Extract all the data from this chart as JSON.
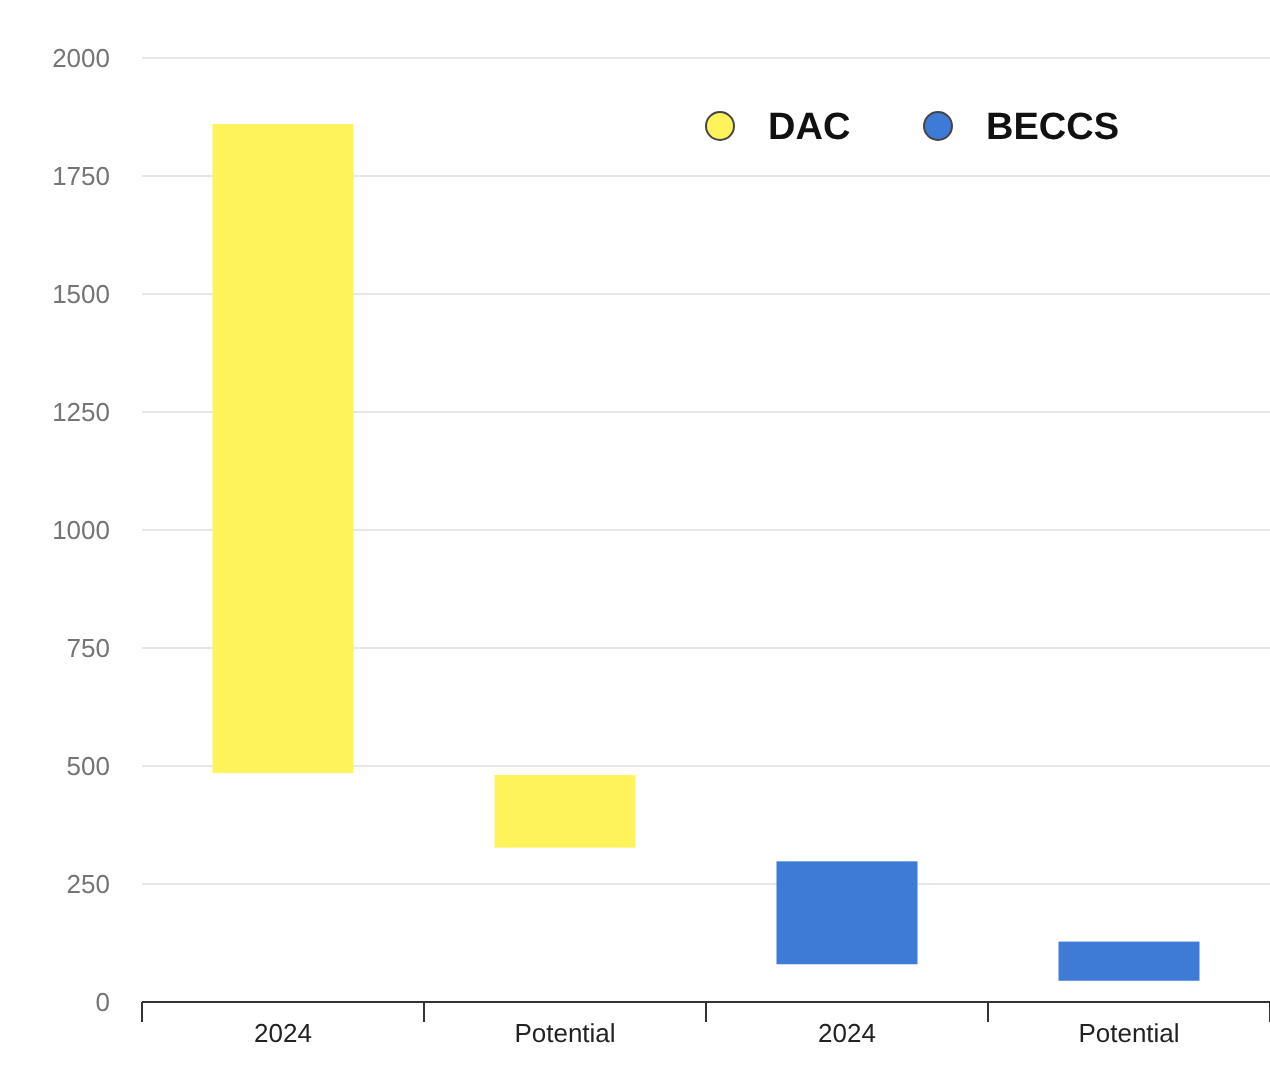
{
  "chart_data": {
    "type": "bar",
    "categories": [
      "2024",
      "Potential",
      "2024",
      "Potential"
    ],
    "series": [
      {
        "name": "DAC",
        "color": "#fff35c",
        "base": [
          485,
          327,
          null,
          null
        ],
        "values": [
          1375,
          154,
          null,
          null
        ]
      },
      {
        "name": "BECCS",
        "color": "#3e7bd6",
        "base": [
          null,
          null,
          80,
          45
        ],
        "values": [
          null,
          null,
          218,
          83
        ]
      }
    ],
    "ylim": [
      0,
      2000
    ],
    "yticks": [
      0,
      250,
      500,
      750,
      1000,
      1250,
      1500,
      1750,
      2000
    ],
    "grid": "y",
    "legend": "top right"
  }
}
